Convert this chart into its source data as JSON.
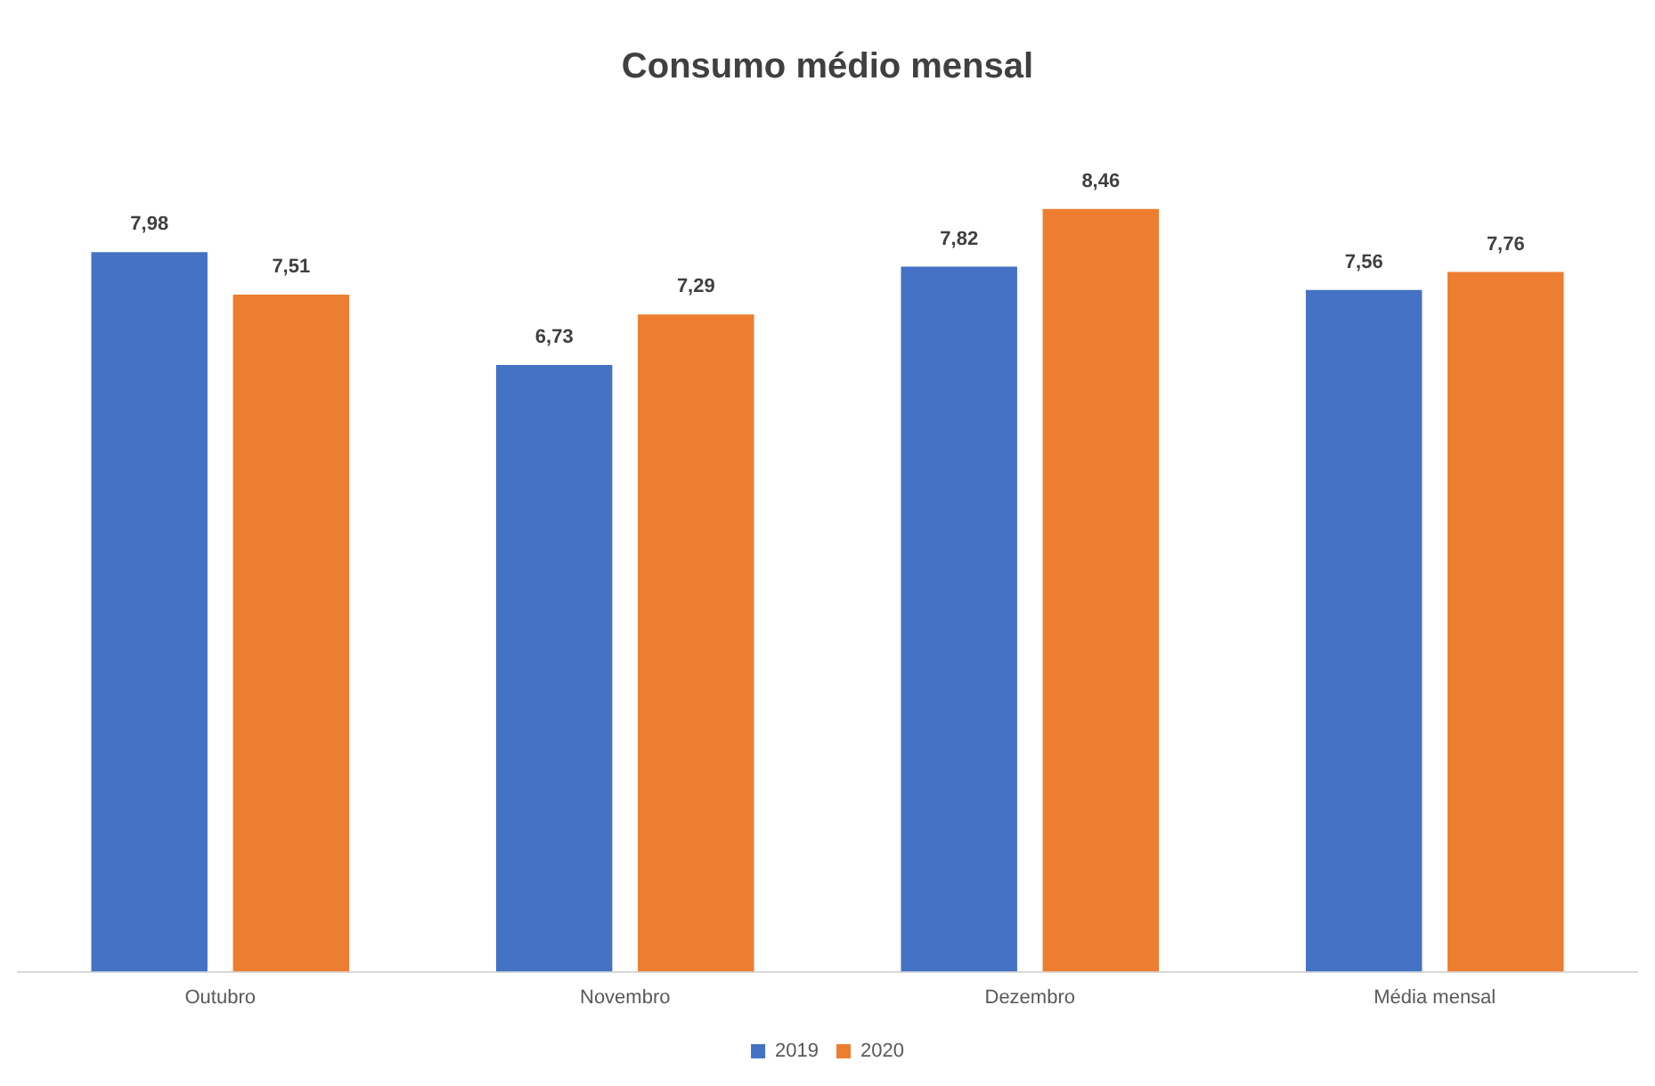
{
  "chart_data": {
    "type": "bar",
    "title": "Consumo médio mensal",
    "categories": [
      "Outubro",
      "Novembro",
      "Dezembro",
      "Média mensal"
    ],
    "series": [
      {
        "name": "2019",
        "color": "#4472c4",
        "values": [
          7.98,
          6.73,
          7.82,
          7.56
        ],
        "value_labels": [
          "7,98",
          "6,73",
          "7,82",
          "7,56"
        ]
      },
      {
        "name": "2020",
        "color": "#ed7d31",
        "values": [
          7.51,
          7.29,
          8.46,
          7.76
        ],
        "value_labels": [
          "7,51",
          "7,29",
          "8,46",
          "7,76"
        ]
      }
    ],
    "grid": false,
    "legend": "bottom"
  }
}
